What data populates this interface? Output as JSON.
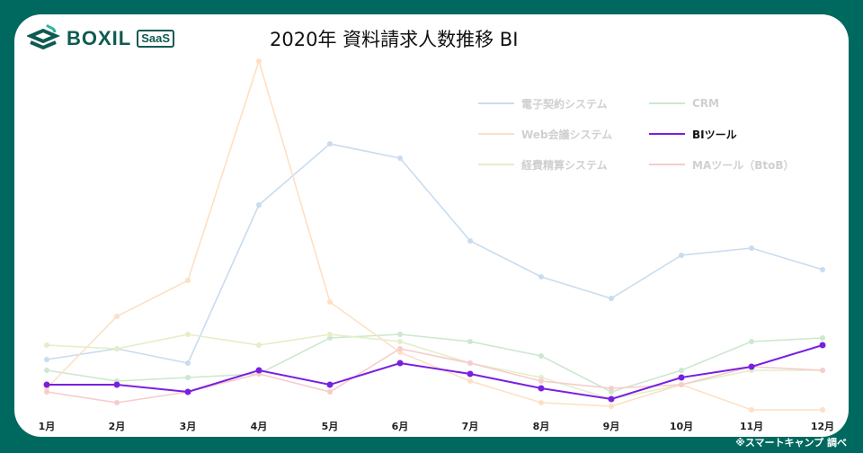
{
  "header": {
    "logo_text": "BOXIL",
    "logo_badge": "SaaS",
    "title": "2020年 資料請求人数推移 BI"
  },
  "footer": {
    "credit": "※スマートキャンプ 調べ"
  },
  "legend": [
    {
      "label": "電子契約システム",
      "color": "#c9dcef",
      "highlight": false
    },
    {
      "label": "CRM",
      "color": "#cde8cf",
      "highlight": false
    },
    {
      "label": "Web会議システム",
      "color": "#fde0c4",
      "highlight": false
    },
    {
      "label": "BIツール",
      "color": "#7a1fe0",
      "highlight": true
    },
    {
      "label": "経費精算システム",
      "color": "#e3efc7",
      "highlight": false
    },
    {
      "label": "MAツール（BtoB）",
      "color": "#f7cccc",
      "highlight": false
    }
  ],
  "chart_data": {
    "type": "line",
    "title": "2020年 資料請求人数推移 BI",
    "xlabel": "",
    "ylabel": "",
    "grid": false,
    "legend_position": "top-right",
    "categories": [
      "1月",
      "2月",
      "3月",
      "4月",
      "5月",
      "6月",
      "7月",
      "8月",
      "9月",
      "10月",
      "11月",
      "12月"
    ],
    "ylim": [
      0,
      100
    ],
    "series": [
      {
        "name": "電子契約システム",
        "color": "#c9dcef",
        "values": [
          15,
          18,
          14,
          58,
          75,
          71,
          48,
          38,
          32,
          44,
          46,
          40
        ]
      },
      {
        "name": "CRM",
        "color": "#cde8cf",
        "values": [
          12,
          9,
          10,
          11,
          21,
          22,
          20,
          16,
          6,
          12,
          20,
          21
        ]
      },
      {
        "name": "Web会議システム",
        "color": "#fde0c4",
        "values": [
          7,
          27,
          37,
          98,
          31,
          17,
          9,
          3,
          2,
          8,
          1,
          1
        ]
      },
      {
        "name": "BIツール",
        "color": "#7a1fe0",
        "values": [
          8,
          8,
          6,
          12,
          8,
          14,
          11,
          7,
          4,
          10,
          13,
          19
        ]
      },
      {
        "name": "経費精算システム",
        "color": "#e3efc7",
        "values": [
          19,
          18,
          22,
          19,
          22,
          20,
          14,
          10,
          4,
          8,
          12,
          12
        ]
      },
      {
        "name": "MAツール（BtoB）",
        "color": "#f7cccc",
        "values": [
          6,
          3,
          6,
          11,
          6,
          18,
          14,
          9,
          7,
          8,
          13,
          12
        ]
      }
    ]
  }
}
